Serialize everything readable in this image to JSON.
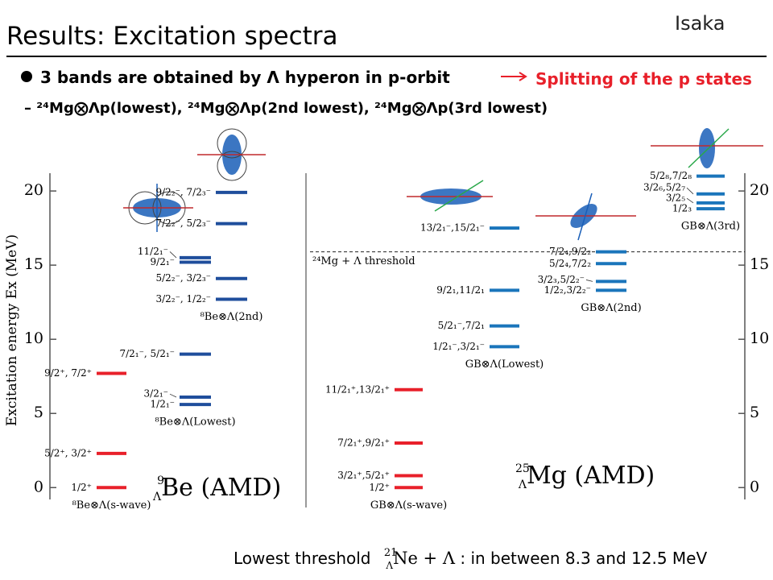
{
  "header": {
    "title": "Results: Excitation spectra",
    "author": "Isaka"
  },
  "bullets": {
    "main": "3 bands are obtained by Λ hyperon in p-orbit",
    "arrow_text": "Splitting of the p states",
    "sub": "²⁴Mg⨂Λp(lowest), ²⁴Mg⨂Λp(2nd lowest), ²⁴Mg⨂Λp(3rd lowest)"
  },
  "axis": {
    "label": "Excitation energy Ex (MeV)",
    "ylim": [
      -0.8,
      21.2
    ],
    "yticks": [
      0,
      5,
      10,
      15,
      20
    ]
  },
  "threshold": {
    "label": "²⁴Mg + Λ threshold",
    "energy": 15.9
  },
  "panels": [
    {
      "mass": "9",
      "hyperon": "Λ",
      "name": "Be (AMD)",
      "columns": [
        {
          "label": "⁸Be⊗Λ(s-wave)",
          "color": "#e8202a",
          "levels": [
            {
              "energy": 0,
              "label": "1/2⁺"
            },
            {
              "energy": 2.3,
              "label": "5/2⁺, 3/2⁺"
            },
            {
              "energy": 7.7,
              "label": "9/2⁺, 7/2⁺"
            }
          ]
        },
        {
          "label": "⁸Be⊗Λ(Lowest)",
          "color": "#1f4e9c",
          "levels": [
            {
              "energy": 5.6,
              "label": "1/2₁⁻"
            },
            {
              "energy": 6.1,
              "label": "3/2₁⁻"
            },
            {
              "energy": 9.0,
              "label": "7/2₁⁻, 5/2₁⁻"
            },
            {
              "energy": 15.2,
              "label": "9/2₁⁻"
            },
            {
              "energy": 15.5,
              "label": "11/2₁⁻"
            }
          ]
        },
        {
          "label": "⁸Be⊗Λ(2nd)",
          "color": "#1f4e9c",
          "levels": [
            {
              "energy": 12.7,
              "label": "3/2₂⁻, 1/2₂⁻"
            },
            {
              "energy": 14.1,
              "label": "5/2₂⁻, 3/2₃⁻"
            },
            {
              "energy": 17.8,
              "label": "7/2₂⁻, 5/2₃⁻"
            },
            {
              "energy": 19.9,
              "label": "9/2₂⁻, 7/2₃⁻"
            }
          ]
        }
      ]
    },
    {
      "mass": "25",
      "hyperon": "Λ",
      "name": "Mg (AMD)",
      "columns": [
        {
          "label": "GB⊗Λ(s-wave)",
          "color": "#e8202a",
          "levels": [
            {
              "energy": 0,
              "label": "1/2⁺"
            },
            {
              "energy": 0.8,
              "label": "3/2₁⁺,5/2₁⁺"
            },
            {
              "energy": 3.0,
              "label": "7/2₁⁺,9/2₁⁺"
            },
            {
              "energy": 6.6,
              "label": "11/2₁⁺,13/2₁⁺"
            }
          ]
        },
        {
          "label": "GB⊗Λ(Lowest)",
          "color": "#1a75bb",
          "levels": [
            {
              "energy": 9.5,
              "label": "1/2₁⁻,3/2₁⁻"
            },
            {
              "energy": 10.9,
              "label": "5/2₁⁻,7/2₁"
            },
            {
              "energy": 13.3,
              "label": "9/2₁,11/2₁"
            },
            {
              "energy": 17.5,
              "label": "13/2₁⁻,15/2₁⁻"
            }
          ]
        },
        {
          "label": "GB⊗Λ(2nd)",
          "color": "#1a75bb",
          "levels": [
            {
              "energy": 13.3,
              "label": "1/2₂,3/2₂⁻"
            },
            {
              "energy": 13.9,
              "label": "3/2₃,5/2₂⁻"
            },
            {
              "energy": 15.1,
              "label": "5/2₄,7/2₂"
            },
            {
              "energy": 15.9,
              "label": "7/2₄,9/2₂"
            }
          ]
        },
        {
          "label": "GB⊗Λ(3rd)",
          "color": "#1a75bb",
          "levels": [
            {
              "energy": 18.8,
              "label": "1/2₃"
            },
            {
              "energy": 19.2,
              "label": "3/2₅"
            },
            {
              "energy": 19.8,
              "label": "3/2₆,5/2₇"
            },
            {
              "energy": 21.0,
              "label": "5/2₈,7/2₈"
            }
          ]
        }
      ]
    }
  ],
  "footer": {
    "prefix": "Lowest threshold",
    "mass": "21",
    "hyperon": "Λ",
    "name": "Ne + Λ",
    "suffix": ": in between 8.3 and 12.5 MeV"
  }
}
